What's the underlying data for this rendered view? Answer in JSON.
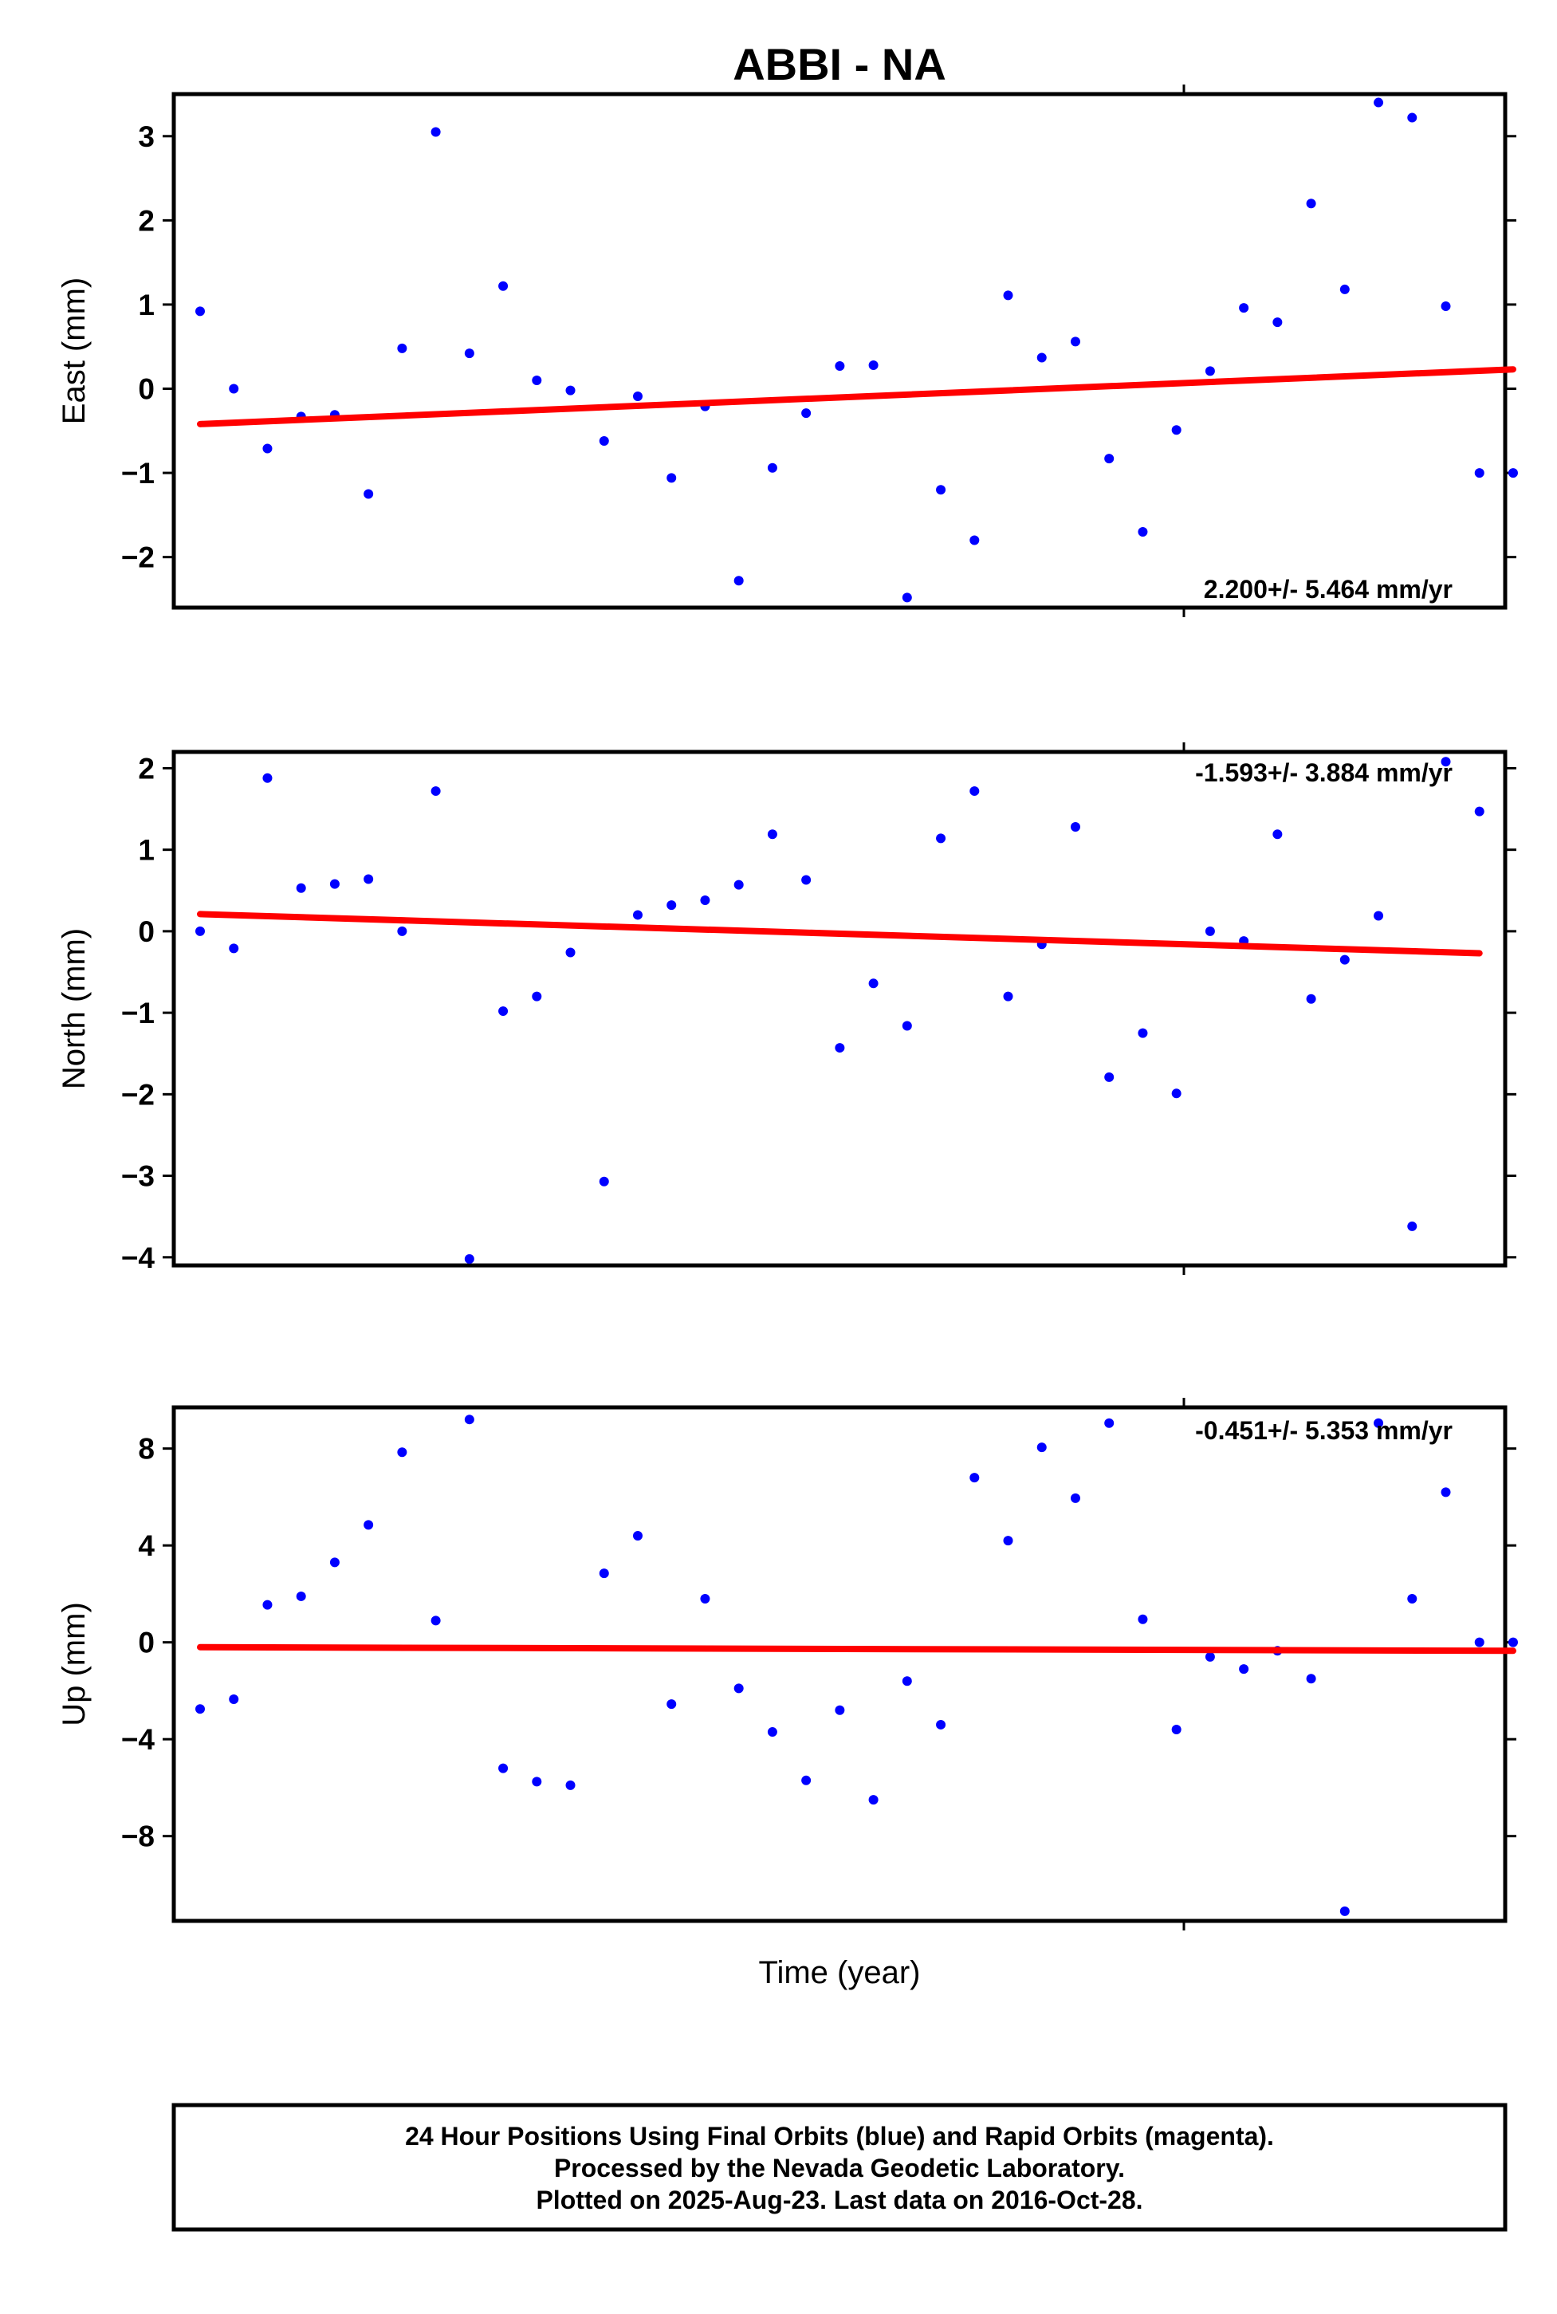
{
  "chart_data": [
    {
      "type": "scatter",
      "title": "ABBI - NA",
      "ylabel": "East (mm)",
      "xlabel": "",
      "ylim": [
        -2.6,
        3.5
      ],
      "yticks": [
        3,
        2,
        1,
        0,
        -1,
        -2
      ],
      "ytick_labels": [
        "3",
        "2",
        "1",
        "0",
        "−1",
        "−2"
      ],
      "x": [
        1,
        2,
        3,
        4,
        5,
        6,
        7,
        8,
        9,
        10,
        11,
        12,
        13,
        14,
        15,
        16,
        17,
        18,
        19,
        20,
        21,
        22,
        23,
        24,
        25,
        26,
        27,
        28,
        29,
        30,
        31,
        32,
        33,
        34,
        35,
        36,
        37,
        38,
        39,
        40
      ],
      "y": [
        0.92,
        0.0,
        -0.71,
        -0.33,
        -0.31,
        -1.25,
        0.48,
        3.05,
        0.42,
        1.22,
        0.1,
        -0.02,
        -0.62,
        -0.09,
        -1.06,
        -0.21,
        -2.28,
        -0.94,
        -0.29,
        0.27,
        0.28,
        -2.48,
        -1.2,
        -1.8,
        1.11,
        0.37,
        0.56,
        -0.83,
        -1.7,
        -0.49,
        0.21,
        0.96,
        0.79,
        2.2,
        1.18,
        3.4,
        3.22,
        0.98,
        -1.0,
        -1.0
      ],
      "trend": {
        "y_start": -0.42,
        "y_end": 0.23
      },
      "rate_label": "2.200+/- 5.464 mm/yr",
      "point_color": "#0000ff",
      "trend_color": "#ff0000",
      "grid": false
    },
    {
      "type": "scatter",
      "title": "",
      "ylabel": "North (mm)",
      "xlabel": "",
      "ylim": [
        -4.1,
        2.2
      ],
      "yticks": [
        2,
        1,
        0,
        -1,
        -2,
        -3,
        -4
      ],
      "ytick_labels": [
        "2",
        "1",
        "0",
        "−1",
        "−2",
        "−3",
        "−4"
      ],
      "x": [
        1,
        2,
        3,
        4,
        5,
        6,
        7,
        8,
        9,
        10,
        11,
        12,
        13,
        14,
        15,
        16,
        17,
        18,
        19,
        20,
        21,
        22,
        23,
        24,
        25,
        26,
        27,
        28,
        29,
        30,
        31,
        32,
        33,
        34,
        35,
        36,
        37,
        38,
        39
      ],
      "y": [
        0.0,
        -0.21,
        1.88,
        0.53,
        0.58,
        0.64,
        0.0,
        1.72,
        -4.02,
        -0.98,
        -0.8,
        -0.26,
        -3.07,
        0.2,
        0.32,
        0.38,
        0.57,
        1.19,
        0.63,
        -1.43,
        -0.64,
        -1.16,
        1.14,
        1.72,
        -0.8,
        -0.16,
        1.28,
        -1.79,
        -1.25,
        -1.99,
        0.0,
        -0.12,
        1.19,
        -0.83,
        -0.35,
        0.19,
        -3.62,
        2.08,
        1.47
      ],
      "trend": {
        "y_start": 0.21,
        "y_end": -0.27
      },
      "rate_label": "-1.593+/- 3.884 mm/yr",
      "point_color": "#0000ff",
      "trend_color": "#ff0000",
      "grid": false
    },
    {
      "type": "scatter",
      "title": "",
      "ylabel": "Up (mm)",
      "xlabel": "Time (year)",
      "ylim": [
        -11.5,
        9.7
      ],
      "yticks": [
        8,
        4,
        0,
        -4,
        -8
      ],
      "ytick_labels": [
        "8",
        "4",
        "0",
        "−4",
        "−8"
      ],
      "x": [
        1,
        2,
        3,
        4,
        5,
        6,
        7,
        8,
        9,
        10,
        11,
        12,
        13,
        14,
        15,
        16,
        17,
        18,
        19,
        20,
        21,
        22,
        23,
        24,
        25,
        26,
        27,
        28,
        29,
        30,
        31,
        32,
        33,
        34,
        35,
        36,
        37,
        38,
        39,
        40
      ],
      "y": [
        -2.75,
        -2.35,
        1.55,
        1.9,
        3.3,
        4.85,
        7.85,
        0.9,
        9.2,
        -5.2,
        -5.75,
        -5.9,
        2.85,
        4.4,
        -2.55,
        1.8,
        -1.9,
        -3.7,
        -5.7,
        -2.8,
        -6.5,
        -1.6,
        -3.4,
        6.8,
        4.2,
        8.05,
        5.95,
        9.05,
        0.95,
        -3.6,
        -0.6,
        -1.1,
        -0.35,
        -1.5,
        -11.1,
        9.05,
        1.8,
        6.2,
        0.0,
        0.0
      ],
      "trend": {
        "y_start": -0.2,
        "y_end": -0.35
      },
      "rate_label": "-0.451+/- 5.353 mm/yr",
      "point_color": "#0000ff",
      "trend_color": "#ff0000",
      "grid": false
    }
  ],
  "caption": {
    "line1": "24 Hour Positions Using Final Orbits (blue) and Rapid Orbits (magenta).",
    "line2": "Processed by the Nevada Geodetic Laboratory.",
    "line3": "Plotted on 2025-Aug-23. Last data on 2016-Oct-28."
  }
}
